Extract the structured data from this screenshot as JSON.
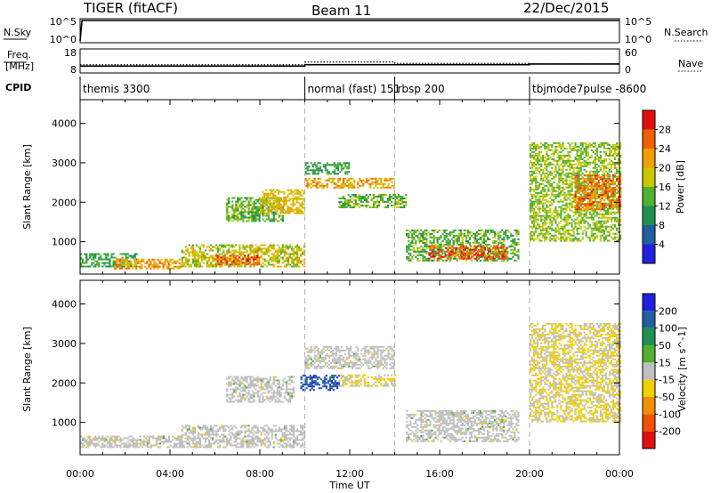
{
  "header": {
    "radar": "TIGER (fitACF)",
    "beam": "Beam 11",
    "date": "22/Dec/2015"
  },
  "strip_labels": {
    "nsky": "N.Sky",
    "nsearch": "N.Search",
    "freq_line1": "Freq.",
    "freq_line2": "[MHz]",
    "nave": "Nave",
    "cpid": "CPID"
  },
  "chart_data": [
    {
      "type": "line",
      "panel": "noise",
      "left_ticks": [
        "10^5",
        "10^0"
      ],
      "right_ticks": [
        "10^5",
        "10^0"
      ],
      "series": [
        {
          "name": "N.Sky",
          "x": [
            "00:00",
            "00:05",
            "06:00",
            "09:00",
            "20:00",
            "22:00",
            "24:00"
          ],
          "y": [
            1,
            100000,
            100000,
            100000,
            100000,
            100000,
            100000
          ]
        },
        {
          "name": "N.Search",
          "x": [
            "00:00",
            "24:00"
          ],
          "y": [
            1,
            1
          ]
        }
      ]
    },
    {
      "type": "line",
      "panel": "frequency",
      "left_ticks": [
        "18",
        "8"
      ],
      "right_ticks": [
        "60",
        "0"
      ],
      "ylim_left": [
        8,
        18
      ],
      "ylim_right": [
        0,
        60
      ],
      "series": [
        {
          "name": "Freq.",
          "x": [
            "00:00",
            "10:00",
            "10:00",
            "20:00",
            "20:00",
            "24:00"
          ],
          "y": [
            10.5,
            10.5,
            11.2,
            11.2,
            11.5,
            11.5
          ]
        },
        {
          "name": "Nave",
          "x": [
            "00:00",
            "10:00",
            "10:00",
            "14:00",
            "14:00",
            "20:00",
            "20:00",
            "24:00"
          ],
          "y": [
            19,
            19,
            27,
            27,
            23,
            23,
            21,
            21
          ]
        }
      ]
    },
    {
      "type": "table",
      "panel": "cpid",
      "segments": [
        {
          "label": "themis 3300",
          "start": "00:00",
          "end": "10:00"
        },
        {
          "label": "normal (fast) 151",
          "start": "10:00",
          "end": "14:00"
        },
        {
          "label": "rbsp 200",
          "start": "14:00",
          "end": "20:00"
        },
        {
          "label": "tbjmode7pulse -8600",
          "start": "20:00",
          "end": "24:00"
        }
      ]
    },
    {
      "type": "heatmap",
      "panel": "power",
      "ylabel": "Slant Range [km]",
      "yticks": [
        "1000",
        "2000",
        "3000",
        "4000"
      ],
      "ylim": [
        180,
        4600
      ],
      "colorbar_label": "Power [dB]",
      "colorbar_ticks": [
        "4",
        "8",
        "12",
        "16",
        "20",
        "24",
        "28"
      ],
      "colorbar_range": [
        0,
        32
      ],
      "colors": [
        "#2020e0",
        "#2060a0",
        "#209050",
        "#50b030",
        "#c8c800",
        "#f0a000",
        "#f06000",
        "#e01010"
      ],
      "regions": [
        {
          "t": [
            0.0,
            2.5
          ],
          "r": [
            350,
            700
          ],
          "v": 12
        },
        {
          "t": [
            1.5,
            4.5
          ],
          "r": [
            300,
            550
          ],
          "v": 22
        },
        {
          "t": [
            4.5,
            10.0
          ],
          "r": [
            350,
            900
          ],
          "v": 18
        },
        {
          "t": [
            6.0,
            8.0
          ],
          "r": [
            400,
            650
          ],
          "v": 26
        },
        {
          "t": [
            6.5,
            9.0
          ],
          "r": [
            1500,
            2100
          ],
          "v": 14
        },
        {
          "t": [
            8.0,
            10.0
          ],
          "r": [
            1700,
            2300
          ],
          "v": 20
        },
        {
          "t": [
            10.0,
            12.0
          ],
          "r": [
            2700,
            3000
          ],
          "v": 12
        },
        {
          "t": [
            10.0,
            14.0
          ],
          "r": [
            2350,
            2600
          ],
          "v": 22
        },
        {
          "t": [
            11.5,
            14.5
          ],
          "r": [
            1850,
            2200
          ],
          "v": 14
        },
        {
          "t": [
            14.5,
            19.5
          ],
          "r": [
            500,
            1300
          ],
          "v": 14
        },
        {
          "t": [
            15.5,
            19.0
          ],
          "r": [
            550,
            900
          ],
          "v": 27
        },
        {
          "t": [
            20.0,
            24.0
          ],
          "r": [
            1000,
            3500
          ],
          "v": 16
        },
        {
          "t": [
            22.0,
            24.0
          ],
          "r": [
            1800,
            2700
          ],
          "v": 25
        }
      ]
    },
    {
      "type": "heatmap",
      "panel": "velocity",
      "xlabel": "Time UT",
      "ylabel": "Slant Range [km]",
      "xticks": [
        "00:00",
        "04:00",
        "08:00",
        "12:00",
        "16:00",
        "20:00",
        "00:00"
      ],
      "yticks": [
        "1000",
        "2000",
        "3000",
        "4000"
      ],
      "ylim": [
        180,
        4600
      ],
      "colorbar_label": "Velocity [m s^-1]",
      "colorbar_ticks": [
        "-200",
        "-100",
        "-50",
        "-15",
        "15",
        "50",
        "100",
        "200"
      ],
      "colorbar_range": [
        -250,
        250
      ],
      "colors": [
        "#e01010",
        "#f05000",
        "#f09000",
        "#f0d000",
        "#c0c0c0",
        "#50b030",
        "#209050",
        "#2060a0",
        "#2020e0"
      ],
      "regions": [
        {
          "t": [
            0.0,
            4.5
          ],
          "r": [
            350,
            650
          ],
          "v": 0
        },
        {
          "t": [
            4.5,
            10.0
          ],
          "r": [
            350,
            900
          ],
          "v": 0
        },
        {
          "t": [
            6.5,
            9.5
          ],
          "r": [
            1500,
            2150
          ],
          "v": 0
        },
        {
          "t": [
            9.8,
            11.5
          ],
          "r": [
            1800,
            2200
          ],
          "v": 180
        },
        {
          "t": [
            10.0,
            14.0
          ],
          "r": [
            2350,
            2900
          ],
          "v": 0
        },
        {
          "t": [
            11.5,
            14.0
          ],
          "r": [
            1900,
            2200
          ],
          "v": -30
        },
        {
          "t": [
            14.5,
            19.5
          ],
          "r": [
            500,
            1300
          ],
          "v": 0
        },
        {
          "t": [
            20.0,
            24.0
          ],
          "r": [
            1000,
            3500
          ],
          "v": -30
        }
      ]
    }
  ]
}
